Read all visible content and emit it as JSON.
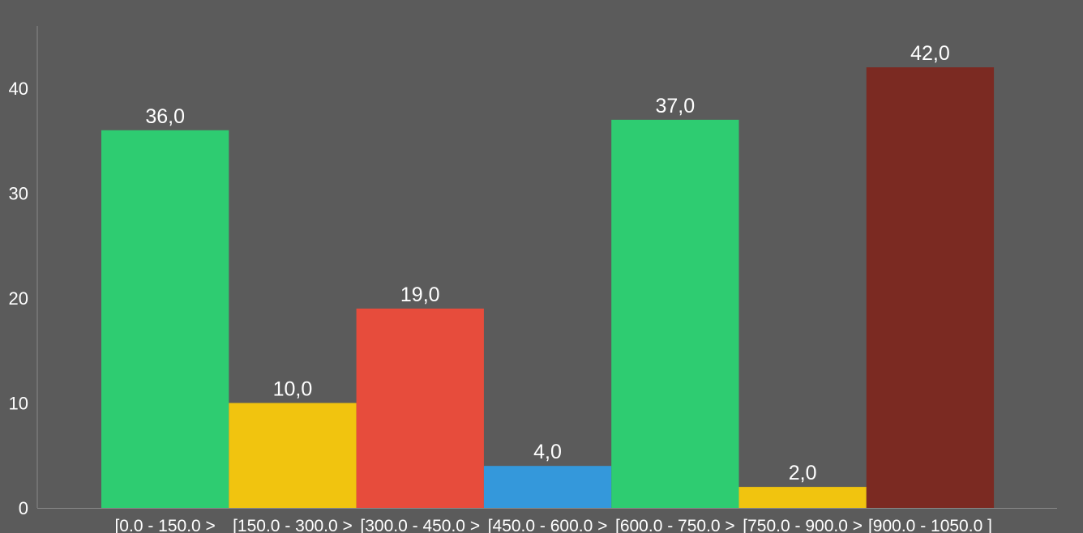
{
  "chart_data": {
    "type": "bar",
    "title": "",
    "xlabel": "",
    "ylabel": "",
    "categories": [
      "[0.0 - 150.0 >",
      "[150.0 - 300.0 >",
      "[300.0 - 450.0 >",
      "[450.0 - 600.0 >",
      "[600.0 - 750.0 >",
      "[750.0 - 900.0 >",
      "[900.0 - 1050.0 ]"
    ],
    "values": [
      36,
      10,
      19,
      4,
      37,
      2,
      42
    ],
    "value_labels": [
      "36,0",
      "10,0",
      "19,0",
      "4,0",
      "37,0",
      "2,0",
      "42,0"
    ],
    "bar_colors": [
      "#2ecc71",
      "#f1c40f",
      "#e74c3c",
      "#3498db",
      "#2ecc71",
      "#f1c40f",
      "#7b2a22"
    ],
    "yticks": [
      0,
      10,
      20,
      30,
      40
    ],
    "ylim": [
      0,
      46
    ],
    "grid": false,
    "legend": "none",
    "background_color": "#5b5b5b"
  }
}
